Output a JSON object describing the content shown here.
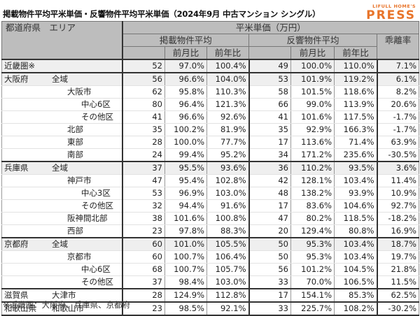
{
  "title": "掲載物件平均平米単価・反響物件平均平米単価（2024年9月 中古マンション シングル）",
  "logo": {
    "top": "LIFULL HOME'S",
    "bottom": "PRESS",
    "color": "#e8742a"
  },
  "header": {
    "area": "都道府県　エリア",
    "unit_price": "平米単価（万円）",
    "listing_avg": "掲載物件平均",
    "inquiry_avg": "反響物件平均",
    "gap_rate": "乖離率",
    "mom": "前月比",
    "yoy": "前年比"
  },
  "rows": [
    {
      "pref": "近畿圏※",
      "area": "",
      "level": 0,
      "v1": "52",
      "mom1": "97.0%",
      "yoy1": "100.4%",
      "v2": "49",
      "mom2": "100.0%",
      "yoy2": "110.0%",
      "gap": "7.1%"
    },
    {
      "pref": "大阪府",
      "area": "全域",
      "level": 0,
      "v1": "56",
      "mom1": "96.6%",
      "yoy1": "104.0%",
      "v2": "53",
      "mom2": "101.9%",
      "yoy2": "119.2%",
      "gap": "6.1%"
    },
    {
      "pref": "",
      "area": "大阪市",
      "level": 2,
      "v1": "62",
      "mom1": "95.8%",
      "yoy1": "110.3%",
      "v2": "58",
      "mom2": "101.5%",
      "yoy2": "118.6%",
      "gap": "8.2%"
    },
    {
      "pref": "",
      "area": "中心6区",
      "level": 3,
      "v1": "80",
      "mom1": "96.4%",
      "yoy1": "121.3%",
      "v2": "66",
      "mom2": "99.0%",
      "yoy2": "113.9%",
      "gap": "20.6%"
    },
    {
      "pref": "",
      "area": "その他区",
      "level": 3,
      "v1": "41",
      "mom1": "96.6%",
      "yoy1": "92.6%",
      "v2": "41",
      "mom2": "101.6%",
      "yoy2": "117.5%",
      "gap": "-1.7%"
    },
    {
      "pref": "",
      "area": "北部",
      "level": 2,
      "v1": "35",
      "mom1": "100.2%",
      "yoy1": "81.9%",
      "v2": "35",
      "mom2": "92.9%",
      "yoy2": "166.3%",
      "gap": "-1.7%"
    },
    {
      "pref": "",
      "area": "東部",
      "level": 2,
      "v1": "28",
      "mom1": "100.0%",
      "yoy1": "77.7%",
      "v2": "17",
      "mom2": "113.6%",
      "yoy2": "71.4%",
      "gap": "63.9%"
    },
    {
      "pref": "",
      "area": "南部",
      "level": 2,
      "v1": "24",
      "mom1": "99.4%",
      "yoy1": "95.2%",
      "v2": "34",
      "mom2": "171.2%",
      "yoy2": "235.6%",
      "gap": "-30.5%"
    },
    {
      "pref": "兵庫県",
      "area": "全域",
      "level": 0,
      "v1": "37",
      "mom1": "95.5%",
      "yoy1": "93.6%",
      "v2": "36",
      "mom2": "110.2%",
      "yoy2": "93.5%",
      "gap": "3.6%"
    },
    {
      "pref": "",
      "area": "神戸市",
      "level": 2,
      "v1": "47",
      "mom1": "95.4%",
      "yoy1": "102.8%",
      "v2": "42",
      "mom2": "128.1%",
      "yoy2": "103.4%",
      "gap": "11.4%"
    },
    {
      "pref": "",
      "area": "中心3区",
      "level": 3,
      "v1": "53",
      "mom1": "96.9%",
      "yoy1": "103.0%",
      "v2": "48",
      "mom2": "138.2%",
      "yoy2": "93.9%",
      "gap": "10.9%"
    },
    {
      "pref": "",
      "area": "その他区",
      "level": 3,
      "v1": "32",
      "mom1": "94.4%",
      "yoy1": "91.6%",
      "v2": "17",
      "mom2": "83.6%",
      "yoy2": "104.6%",
      "gap": "92.7%"
    },
    {
      "pref": "",
      "area": "阪神間北部",
      "level": 2,
      "v1": "38",
      "mom1": "101.6%",
      "yoy1": "100.8%",
      "v2": "47",
      "mom2": "80.2%",
      "yoy2": "118.5%",
      "gap": "-18.2%"
    },
    {
      "pref": "",
      "area": "西部",
      "level": 2,
      "v1": "23",
      "mom1": "97.8%",
      "yoy1": "88.3%",
      "v2": "20",
      "mom2": "129.4%",
      "yoy2": "80.8%",
      "gap": "16.9%"
    },
    {
      "pref": "京都府",
      "area": "全域",
      "level": 0,
      "v1": "60",
      "mom1": "101.0%",
      "yoy1": "105.5%",
      "v2": "50",
      "mom2": "95.3%",
      "yoy2": "103.4%",
      "gap": "18.7%"
    },
    {
      "pref": "",
      "area": "京都市",
      "level": 2,
      "v1": "60",
      "mom1": "100.7%",
      "yoy1": "106.4%",
      "v2": "50",
      "mom2": "95.3%",
      "yoy2": "103.4%",
      "gap": "19.7%"
    },
    {
      "pref": "",
      "area": "中心6区",
      "level": 3,
      "v1": "68",
      "mom1": "100.7%",
      "yoy1": "105.7%",
      "v2": "56",
      "mom2": "101.2%",
      "yoy2": "104.5%",
      "gap": "21.8%"
    },
    {
      "pref": "",
      "area": "その他区",
      "level": 3,
      "v1": "37",
      "mom1": "98.4%",
      "yoy1": "103.0%",
      "v2": "33",
      "mom2": "70.0%",
      "yoy2": "106.5%",
      "gap": "11.5%"
    },
    {
      "pref": "滋賀県",
      "area": "大津市",
      "level": 0,
      "v1": "28",
      "mom1": "124.9%",
      "yoy1": "112.8%",
      "v2": "17",
      "mom2": "154.1%",
      "yoy2": "85.3%",
      "gap": "62.5%"
    },
    {
      "pref": "和歌山県",
      "area": "和歌山市",
      "level": 0,
      "v1": "23",
      "mom1": "98.5%",
      "yoy1": "92.1%",
      "v2": "33",
      "mom2": "225.7%",
      "yoy2": "108.2%",
      "gap": "-30.2%"
    }
  ],
  "footnote": "※近畿圏：大阪府、兵庫県、京都府"
}
